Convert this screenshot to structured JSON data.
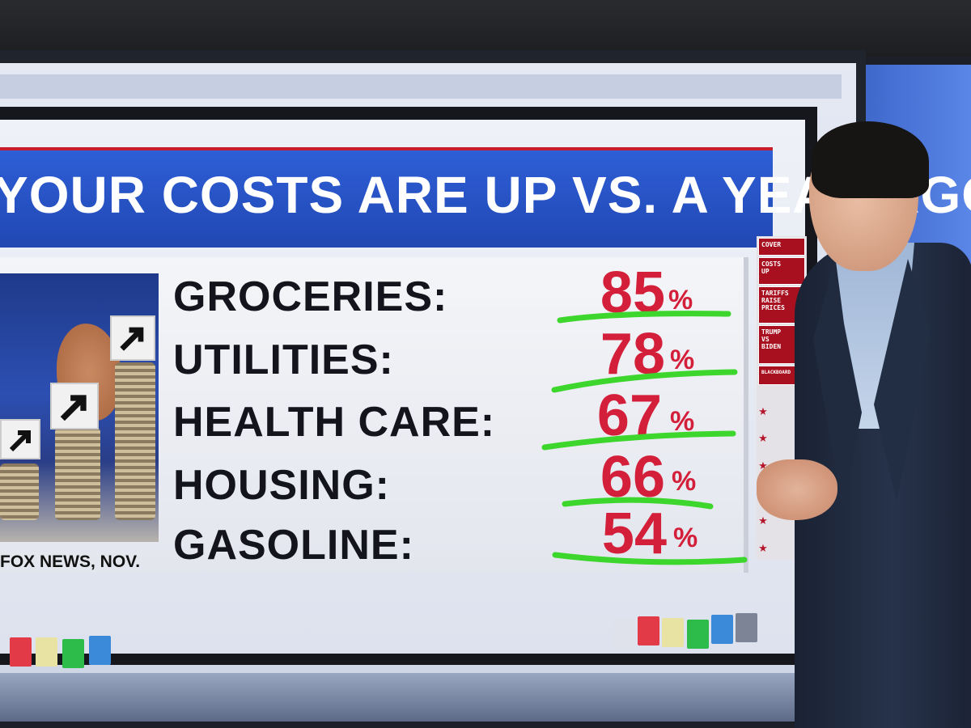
{
  "graphic": {
    "title": "YOUR COSTS ARE UP VS. A YEAR AGO",
    "source": "FOX NEWS, NOV.",
    "rows": [
      {
        "label": "GROCERIES:",
        "value": "85",
        "unit": "%"
      },
      {
        "label": "UTILITIES:",
        "value": "78",
        "unit": "%"
      },
      {
        "label": "HEALTH CARE:",
        "value": "67",
        "unit": "%"
      },
      {
        "label": "HOUSING:",
        "value": "66",
        "unit": "%"
      },
      {
        "label": "GASOLINE:",
        "value": "54",
        "unit": "%"
      }
    ],
    "underline_color": "#3dd62c",
    "value_color": "#d41f3a",
    "title_bar_color": "#2a55c8"
  },
  "rail_menu": {
    "items": [
      "COVER",
      "COSTS\nUP",
      "TARIFFS\nRAISE\nPRICES",
      "TRUMP\nVS\nBIDEN",
      "BLACKBOARD"
    ]
  },
  "palette_left": [
    "#e23a47",
    "#e8e3a3",
    "#2dbb4a",
    "#3a8ad9"
  ],
  "palette_right": [
    "#e23a47",
    "#e8e3a3",
    "#2dbb4a",
    "#3a8ad9"
  ]
}
